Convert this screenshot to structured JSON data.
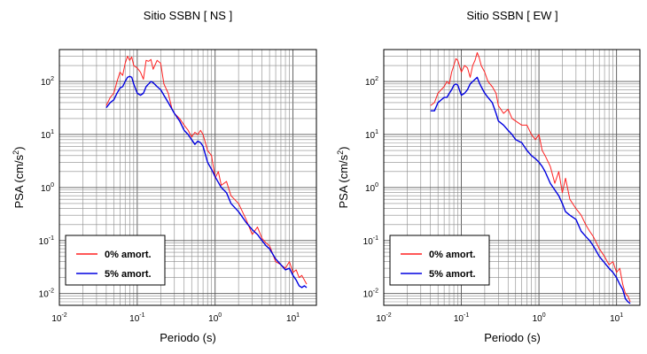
{
  "chart_data": [
    {
      "type": "line",
      "title": "Sitio SSBN [ NS ]",
      "xlabel": "Periodo (s)",
      "ylabel_base": "PSA (cm/s",
      "ylabel_exp": "2",
      "ylabel_close": ")",
      "x_scale": "log",
      "y_scale": "log",
      "xlim": [
        0.01,
        20
      ],
      "ylim": [
        0.006,
        400
      ],
      "grid": true,
      "legend_position": "bottom-left",
      "x_ticks": [
        {
          "base": "10",
          "exp": "-2",
          "value": 0.01
        },
        {
          "base": "10",
          "exp": "-1",
          "value": 0.1
        },
        {
          "base": "10",
          "exp": "0",
          "value": 1
        },
        {
          "base": "10",
          "exp": "1",
          "value": 10
        }
      ],
      "y_ticks": [
        {
          "base": "10",
          "exp": "-2",
          "value": 0.01
        },
        {
          "base": "10",
          "exp": "-1",
          "value": 0.1
        },
        {
          "base": "10",
          "exp": "0",
          "value": 1
        },
        {
          "base": "10",
          "exp": "1",
          "value": 10
        },
        {
          "base": "10",
          "exp": "2",
          "value": 100
        }
      ],
      "series": [
        {
          "name": "0% amort.",
          "color": "#ff2020",
          "points": [
            [
              0.04,
              35
            ],
            [
              0.045,
              50
            ],
            [
              0.05,
              60
            ],
            [
              0.055,
              100
            ],
            [
              0.06,
              150
            ],
            [
              0.065,
              130
            ],
            [
              0.07,
              220
            ],
            [
              0.075,
              300
            ],
            [
              0.08,
              250
            ],
            [
              0.085,
              290
            ],
            [
              0.09,
              200
            ],
            [
              0.1,
              180
            ],
            [
              0.11,
              150
            ],
            [
              0.12,
              110
            ],
            [
              0.13,
              250
            ],
            [
              0.14,
              240
            ],
            [
              0.15,
              260
            ],
            [
              0.16,
              170
            ],
            [
              0.18,
              250
            ],
            [
              0.2,
              220
            ],
            [
              0.22,
              90
            ],
            [
              0.25,
              60
            ],
            [
              0.28,
              30
            ],
            [
              0.3,
              25
            ],
            [
              0.35,
              20
            ],
            [
              0.4,
              15
            ],
            [
              0.45,
              12
            ],
            [
              0.5,
              9
            ],
            [
              0.55,
              11
            ],
            [
              0.6,
              10
            ],
            [
              0.65,
              12
            ],
            [
              0.7,
              10
            ],
            [
              0.8,
              5
            ],
            [
              0.9,
              4
            ],
            [
              1.0,
              1.5
            ],
            [
              1.1,
              2
            ],
            [
              1.2,
              1.1
            ],
            [
              1.4,
              1.3
            ],
            [
              1.6,
              0.7
            ],
            [
              2.0,
              0.5
            ],
            [
              2.5,
              0.25
            ],
            [
              3,
              0.13
            ],
            [
              3.5,
              0.18
            ],
            [
              4,
              0.11
            ],
            [
              4.5,
              0.09
            ],
            [
              5,
              0.08
            ],
            [
              6,
              0.04
            ],
            [
              7,
              0.035
            ],
            [
              8,
              0.03
            ],
            [
              9,
              0.04
            ],
            [
              10,
              0.025
            ],
            [
              11,
              0.028
            ],
            [
              12,
              0.02
            ],
            [
              13,
              0.022
            ],
            [
              14,
              0.018
            ],
            [
              15,
              0.015
            ]
          ]
        },
        {
          "name": "5% amort.",
          "color": "#0000e0",
          "points": [
            [
              0.04,
              32
            ],
            [
              0.045,
              40
            ],
            [
              0.05,
              45
            ],
            [
              0.055,
              60
            ],
            [
              0.06,
              75
            ],
            [
              0.065,
              80
            ],
            [
              0.07,
              100
            ],
            [
              0.075,
              120
            ],
            [
              0.08,
              125
            ],
            [
              0.085,
              120
            ],
            [
              0.09,
              90
            ],
            [
              0.1,
              60
            ],
            [
              0.11,
              55
            ],
            [
              0.12,
              60
            ],
            [
              0.13,
              80
            ],
            [
              0.14,
              90
            ],
            [
              0.15,
              100
            ],
            [
              0.16,
              95
            ],
            [
              0.18,
              80
            ],
            [
              0.2,
              70
            ],
            [
              0.22,
              55
            ],
            [
              0.25,
              40
            ],
            [
              0.3,
              25
            ],
            [
              0.35,
              18
            ],
            [
              0.4,
              12
            ],
            [
              0.45,
              10
            ],
            [
              0.5,
              8
            ],
            [
              0.55,
              6.5
            ],
            [
              0.6,
              7.5
            ],
            [
              0.65,
              7
            ],
            [
              0.7,
              6
            ],
            [
              0.8,
              3
            ],
            [
              0.9,
              2.2
            ],
            [
              1.0,
              1.6
            ],
            [
              1.2,
              1.0
            ],
            [
              1.4,
              0.8
            ],
            [
              1.6,
              0.5
            ],
            [
              2.0,
              0.35
            ],
            [
              2.5,
              0.22
            ],
            [
              3,
              0.16
            ],
            [
              3.5,
              0.13
            ],
            [
              4,
              0.1
            ],
            [
              4.5,
              0.08
            ],
            [
              5,
              0.07
            ],
            [
              6,
              0.045
            ],
            [
              7,
              0.035
            ],
            [
              8,
              0.028
            ],
            [
              9,
              0.03
            ],
            [
              10,
              0.022
            ],
            [
              11,
              0.018
            ],
            [
              12,
              0.014
            ],
            [
              13,
              0.013
            ],
            [
              14,
              0.014
            ],
            [
              15,
              0.013
            ]
          ]
        }
      ]
    },
    {
      "type": "line",
      "title": "Sitio SSBN [ EW ]",
      "xlabel": "Periodo (s)",
      "ylabel_base": "PSA (cm/s",
      "ylabel_exp": "2",
      "ylabel_close": ")",
      "x_scale": "log",
      "y_scale": "log",
      "xlim": [
        0.01,
        20
      ],
      "ylim": [
        0.006,
        400
      ],
      "grid": true,
      "legend_position": "bottom-left",
      "x_ticks": [
        {
          "base": "10",
          "exp": "-2",
          "value": 0.01
        },
        {
          "base": "10",
          "exp": "-1",
          "value": 0.1
        },
        {
          "base": "10",
          "exp": "0",
          "value": 1
        },
        {
          "base": "10",
          "exp": "1",
          "value": 10
        }
      ],
      "y_ticks": [
        {
          "base": "10",
          "exp": "-2",
          "value": 0.01
        },
        {
          "base": "10",
          "exp": "-1",
          "value": 0.1
        },
        {
          "base": "10",
          "exp": "0",
          "value": 1
        },
        {
          "base": "10",
          "exp": "1",
          "value": 10
        },
        {
          "base": "10",
          "exp": "2",
          "value": 100
        }
      ],
      "series": [
        {
          "name": "0% amort.",
          "color": "#ff2020",
          "points": [
            [
              0.04,
              35
            ],
            [
              0.045,
              40
            ],
            [
              0.05,
              60
            ],
            [
              0.055,
              70
            ],
            [
              0.06,
              80
            ],
            [
              0.065,
              100
            ],
            [
              0.07,
              90
            ],
            [
              0.075,
              150
            ],
            [
              0.08,
              200
            ],
            [
              0.085,
              270
            ],
            [
              0.09,
              250
            ],
            [
              0.1,
              150
            ],
            [
              0.11,
              200
            ],
            [
              0.12,
              180
            ],
            [
              0.13,
              120
            ],
            [
              0.14,
              200
            ],
            [
              0.15,
              250
            ],
            [
              0.16,
              350
            ],
            [
              0.17,
              280
            ],
            [
              0.18,
              200
            ],
            [
              0.2,
              150
            ],
            [
              0.22,
              100
            ],
            [
              0.25,
              80
            ],
            [
              0.28,
              60
            ],
            [
              0.3,
              35
            ],
            [
              0.35,
              25
            ],
            [
              0.4,
              30
            ],
            [
              0.45,
              20
            ],
            [
              0.5,
              18
            ],
            [
              0.6,
              15
            ],
            [
              0.7,
              15
            ],
            [
              0.8,
              10
            ],
            [
              0.9,
              8
            ],
            [
              1.0,
              10
            ],
            [
              1.1,
              5
            ],
            [
              1.2,
              4
            ],
            [
              1.4,
              2.5
            ],
            [
              1.6,
              1.2
            ],
            [
              1.8,
              2
            ],
            [
              2.0,
              0.8
            ],
            [
              2.2,
              1.5
            ],
            [
              2.5,
              0.6
            ],
            [
              3,
              0.4
            ],
            [
              3.5,
              0.3
            ],
            [
              4,
              0.2
            ],
            [
              4.5,
              0.15
            ],
            [
              5,
              0.12
            ],
            [
              6,
              0.07
            ],
            [
              7,
              0.05
            ],
            [
              8,
              0.035
            ],
            [
              9,
              0.04
            ],
            [
              10,
              0.025
            ],
            [
              11,
              0.03
            ],
            [
              12,
              0.015
            ],
            [
              13,
              0.01
            ],
            [
              14,
              0.009
            ],
            [
              15,
              0.007
            ]
          ]
        },
        {
          "name": "5% amort.",
          "color": "#0000e0",
          "points": [
            [
              0.04,
              28
            ],
            [
              0.045,
              28
            ],
            [
              0.05,
              40
            ],
            [
              0.055,
              45
            ],
            [
              0.06,
              50
            ],
            [
              0.065,
              50
            ],
            [
              0.07,
              60
            ],
            [
              0.075,
              70
            ],
            [
              0.08,
              85
            ],
            [
              0.085,
              90
            ],
            [
              0.09,
              85
            ],
            [
              0.1,
              55
            ],
            [
              0.11,
              60
            ],
            [
              0.12,
              70
            ],
            [
              0.13,
              90
            ],
            [
              0.14,
              100
            ],
            [
              0.15,
              110
            ],
            [
              0.16,
              120
            ],
            [
              0.17,
              95
            ],
            [
              0.18,
              80
            ],
            [
              0.2,
              60
            ],
            [
              0.22,
              50
            ],
            [
              0.25,
              40
            ],
            [
              0.28,
              25
            ],
            [
              0.3,
              18
            ],
            [
              0.35,
              15
            ],
            [
              0.4,
              12
            ],
            [
              0.45,
              10
            ],
            [
              0.5,
              8
            ],
            [
              0.6,
              7
            ],
            [
              0.7,
              5
            ],
            [
              0.8,
              4
            ],
            [
              0.9,
              3.5
            ],
            [
              1.0,
              3
            ],
            [
              1.1,
              2.5
            ],
            [
              1.2,
              2
            ],
            [
              1.4,
              1.2
            ],
            [
              1.6,
              0.9
            ],
            [
              1.8,
              0.7
            ],
            [
              2.0,
              0.5
            ],
            [
              2.2,
              0.35
            ],
            [
              2.5,
              0.3
            ],
            [
              3,
              0.25
            ],
            [
              3.5,
              0.15
            ],
            [
              4,
              0.12
            ],
            [
              4.5,
              0.1
            ],
            [
              5,
              0.08
            ],
            [
              6,
              0.05
            ],
            [
              7,
              0.038
            ],
            [
              8,
              0.03
            ],
            [
              9,
              0.025
            ],
            [
              10,
              0.02
            ],
            [
              11,
              0.015
            ],
            [
              12,
              0.012
            ],
            [
              13,
              0.008
            ],
            [
              14,
              0.007
            ],
            [
              15,
              0.0065
            ]
          ]
        }
      ]
    }
  ]
}
